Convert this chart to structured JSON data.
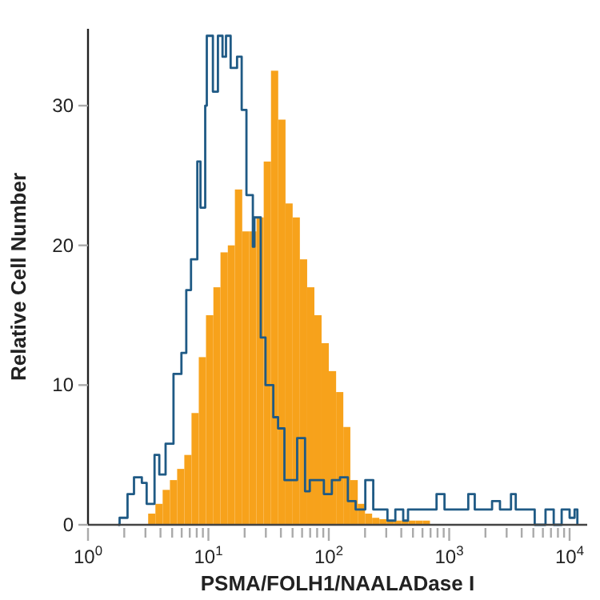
{
  "chart_data": {
    "type": "step",
    "xlabel": "PSMA/FOLH1/NAALADase I",
    "ylabel": "Relative Cell Number",
    "log": "x",
    "grid": false,
    "xlim": [
      1,
      14000
    ],
    "ylim": [
      0,
      35.5
    ],
    "xticks": [
      {
        "value": 1,
        "label": "10$^{0}$"
      },
      {
        "value": 2,
        "label": null
      },
      {
        "value": 3,
        "label": null
      },
      {
        "value": 4,
        "label": null
      },
      {
        "value": 5,
        "label": null
      },
      {
        "value": 6,
        "label": null
      },
      {
        "value": 7,
        "label": null
      },
      {
        "value": 8,
        "label": null
      },
      {
        "value": 9,
        "label": null
      },
      {
        "value": 10,
        "label": "10$^{1}$"
      },
      {
        "value": 20,
        "label": null
      },
      {
        "value": 30,
        "label": null
      },
      {
        "value": 40,
        "label": null
      },
      {
        "value": 50,
        "label": null
      },
      {
        "value": 60,
        "label": null
      },
      {
        "value": 70,
        "label": null
      },
      {
        "value": 80,
        "label": null
      },
      {
        "value": 90,
        "label": null
      },
      {
        "value": 100,
        "label": "10$^{2}$"
      },
      {
        "value": 200,
        "label": null
      },
      {
        "value": 300,
        "label": null
      },
      {
        "value": 400,
        "label": null
      },
      {
        "value": 500,
        "label": null
      },
      {
        "value": 600,
        "label": null
      },
      {
        "value": 700,
        "label": null
      },
      {
        "value": 800,
        "label": null
      },
      {
        "value": 900,
        "label": null
      },
      {
        "value": 1000,
        "label": "10$^{3}$"
      },
      {
        "value": 2000,
        "label": null
      },
      {
        "value": 3000,
        "label": null
      },
      {
        "value": 4000,
        "label": null
      },
      {
        "value": 5000,
        "label": null
      },
      {
        "value": 6000,
        "label": null
      },
      {
        "value": 7000,
        "label": null
      },
      {
        "value": 8000,
        "label": null
      },
      {
        "value": 9000,
        "label": null
      },
      {
        "value": 10000,
        "label": "10$^{4}$"
      }
    ],
    "yticks": [
      0,
      10,
      20,
      30
    ],
    "series": [
      {
        "type": "histogram",
        "color": "#f7a21b",
        "bins": [
          3.16,
          3.63,
          4.17,
          4.79,
          5.5,
          6.31,
          7.24,
          8.32,
          9.55,
          11,
          12.6,
          14.5,
          16.6,
          19.1,
          21.9,
          25.1,
          28.8,
          33.1,
          38,
          43.7,
          50.1,
          57.5,
          66.1,
          75.9,
          87.1,
          100,
          115,
          132,
          151,
          174,
          200,
          229,
          263,
          302,
          347,
          398,
          457,
          525,
          603,
          692
        ],
        "values": [
          0.8,
          1.5,
          2.5,
          3.2,
          4,
          5,
          8,
          12,
          15,
          17,
          19.5,
          20,
          24,
          21,
          21,
          22,
          26,
          32.5,
          29,
          23,
          22,
          19,
          17,
          15,
          13,
          11,
          9.5,
          7,
          3.2,
          1.5,
          0.8,
          0.5,
          0.4,
          0.3,
          0.3,
          0.3,
          0.3,
          0.3,
          0.3
        ]
      },
      {
        "color": "#1f5a85",
        "x": [
          1.78,
          1.83,
          2.13,
          2.41,
          2.8,
          3.07,
          3.57,
          3.91,
          4.41,
          5.13,
          5.97,
          6.55,
          7.17,
          8.09,
          8.59,
          9.41,
          9.7,
          10.9,
          12,
          13.1,
          14,
          15.3,
          17.3,
          18.9,
          20.7,
          23.4,
          24.1,
          27.2,
          29.8,
          34.6,
          37.9,
          42.8,
          54.6,
          63.5,
          69.5,
          91,
          106,
          124,
          144,
          167,
          201,
          234,
          307,
          357,
          415,
          455,
          785,
          914,
          1440,
          1630,
          2270,
          2640,
          3260,
          3570,
          5130,
          6310,
          7380,
          8590,
          10000,
          11000,
          11600
        ],
        "values": [
          0,
          0.5,
          2.2,
          3.4,
          3,
          1.5,
          5,
          3.6,
          5.8,
          10.8,
          12.3,
          16.8,
          19,
          26,
          22.7,
          30,
          35,
          31,
          35,
          33.5,
          35,
          32.7,
          33.5,
          29.7,
          23.6,
          19.9,
          22,
          13.4,
          10,
          7.7,
          6.9,
          3.2,
          6.2,
          2.4,
          3.2,
          2.2,
          3.2,
          3.4,
          1.7,
          1.1,
          3.2,
          1.1,
          0.3,
          1.1,
          0.3,
          1.1,
          2.2,
          1.1,
          2.2,
          1.1,
          1.7,
          1.1,
          2.2,
          1.1,
          0,
          1.1,
          0,
          1.1,
          0.5,
          1.1,
          0
        ]
      }
    ]
  }
}
